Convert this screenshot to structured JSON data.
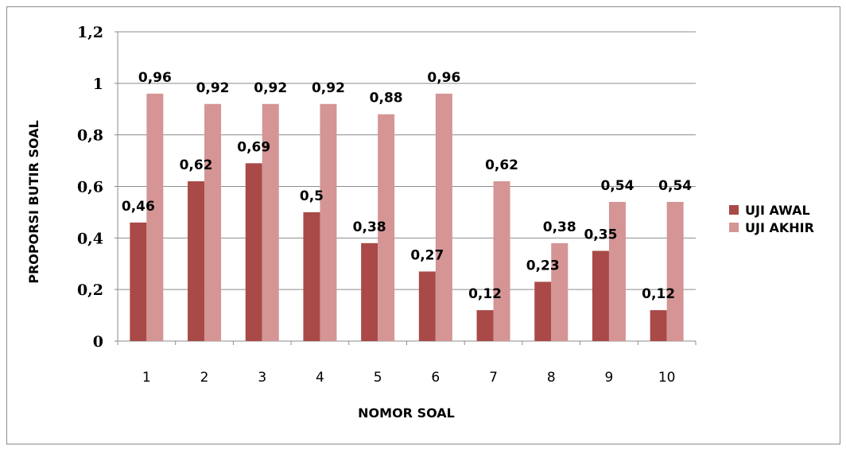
{
  "chart_data": {
    "type": "bar",
    "categories": [
      "1",
      "2",
      "3",
      "4",
      "5",
      "6",
      "7",
      "8",
      "9",
      "10"
    ],
    "series": [
      {
        "name": "UJI AWAL",
        "color": "#a94a48",
        "values": [
          0.46,
          0.62,
          0.69,
          0.5,
          0.38,
          0.27,
          0.12,
          0.23,
          0.35,
          0.12
        ],
        "labels": [
          "0,46",
          "0,62",
          "0,69",
          "0,5",
          "0,38",
          "0,27",
          "0,12",
          "0,23",
          "0,35",
          "0,12"
        ]
      },
      {
        "name": "UJI AKHIR",
        "color": "#d49594",
        "values": [
          0.96,
          0.92,
          0.92,
          0.92,
          0.88,
          0.96,
          0.62,
          0.38,
          0.54,
          0.54
        ],
        "labels": [
          "0,96",
          "0,92",
          "0,92",
          "0,92",
          "0,88",
          "0,96",
          "0,62",
          "0,38",
          "0,54",
          "0,54"
        ]
      }
    ],
    "xlabel": "NOMOR SOAL",
    "ylabel": "PROPORSI BUTIR SOAL",
    "ylim": [
      0,
      1.2
    ],
    "yticks": [
      0,
      0.2,
      0.4,
      0.6,
      0.8,
      1,
      1.2
    ],
    "ytick_labels": [
      "0",
      "0,2",
      "0,4",
      "0,6",
      "0,8",
      "1",
      "1,2"
    ],
    "grid": true,
    "gridline_color": "#8c8c8c",
    "legend_position": "right"
  }
}
